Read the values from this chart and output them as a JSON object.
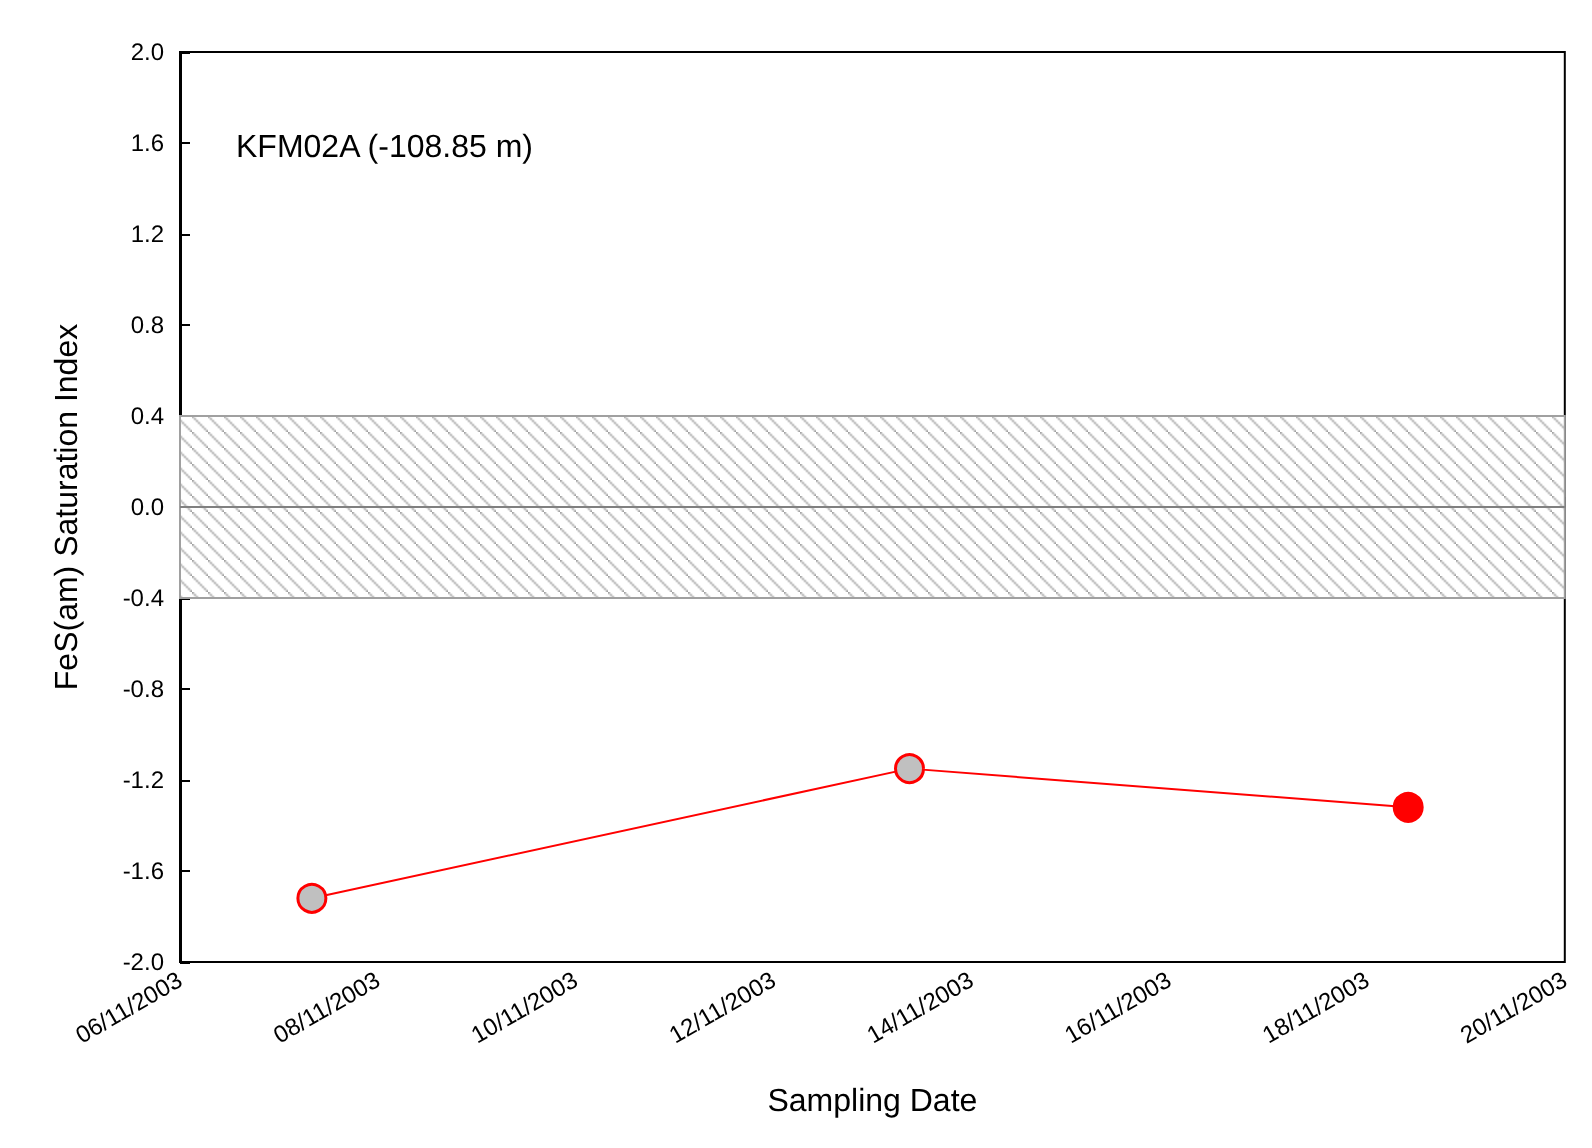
{
  "chart_data": {
    "type": "line",
    "xlabel": "Sampling Date",
    "ylabel": "FeS(am) Saturation Index",
    "annotations": [
      "KFM02A (-108.85 m)"
    ],
    "x": [
      "2003-11-07T08:00",
      "2003-11-13T09:00",
      "2003-11-18T10:00"
    ],
    "series": [
      {
        "color": "#ff0000",
        "colors": [
          "#c0c0c0",
          "#c0c0c0",
          "#ff0000"
        ],
        "values": [
          -1.72,
          -1.15,
          -1.32
        ]
      }
    ],
    "marker": "circle",
    "line_style": "solid",
    "grid": false,
    "xlim": [
      "2003-11-06",
      "2003-11-20"
    ],
    "xticks": [
      {
        "value": "2003-11-06",
        "label": "06/11/2003"
      },
      {
        "value": "2003-11-08",
        "label": "08/11/2003"
      },
      {
        "value": "2003-11-10",
        "label": "10/11/2003"
      },
      {
        "value": "2003-11-12",
        "label": "12/11/2003"
      },
      {
        "value": "2003-11-14",
        "label": "14/11/2003"
      },
      {
        "value": "2003-11-16",
        "label": "16/11/2003"
      },
      {
        "value": "2003-11-18",
        "label": "18/11/2003"
      },
      {
        "value": "2003-11-20",
        "label": "20/11/2003"
      }
    ],
    "ylim": [
      -2.0,
      2.0
    ],
    "yticks": [
      {
        "value": -2,
        "label": "-2.0"
      },
      {
        "value": -1.6,
        "label": "-1.6"
      },
      {
        "value": -1.2,
        "label": "-1.2"
      },
      {
        "value": -0.8,
        "label": "-0.8"
      },
      {
        "value": -0.4,
        "label": "-0.4"
      },
      {
        "value": 0,
        "label": "0.0"
      },
      {
        "value": 0.4,
        "label": "0.4"
      },
      {
        "value": 0.8,
        "label": "0.8"
      },
      {
        "value": 1.2,
        "label": "1.2"
      },
      {
        "value": 1.6,
        "label": "1.6"
      },
      {
        "value": 2,
        "label": "2.0"
      }
    ],
    "bands": [
      {
        "axis": "y",
        "from": -0.4,
        "to": 0.4,
        "color": "#a0a0a0"
      }
    ],
    "ref_lines": [
      {
        "axis": "y",
        "value": 0,
        "color": "#808080"
      }
    ]
  }
}
